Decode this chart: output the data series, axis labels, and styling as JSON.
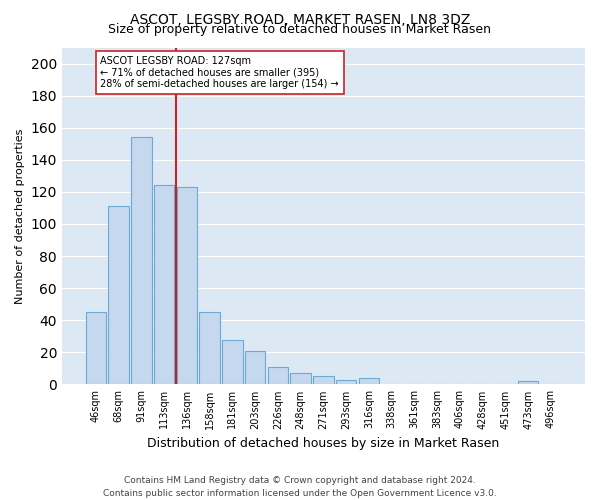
{
  "title": "ASCOT, LEGSBY ROAD, MARKET RASEN, LN8 3DZ",
  "subtitle": "Size of property relative to detached houses in Market Rasen",
  "xlabel": "Distribution of detached houses by size in Market Rasen",
  "ylabel": "Number of detached properties",
  "categories": [
    "46sqm",
    "68sqm",
    "91sqm",
    "113sqm",
    "136sqm",
    "158sqm",
    "181sqm",
    "203sqm",
    "226sqm",
    "248sqm",
    "271sqm",
    "293sqm",
    "316sqm",
    "338sqm",
    "361sqm",
    "383sqm",
    "406sqm",
    "428sqm",
    "451sqm",
    "473sqm",
    "496sqm"
  ],
  "values": [
    45,
    111,
    154,
    124,
    123,
    45,
    28,
    21,
    11,
    7,
    5,
    3,
    4,
    0,
    0,
    0,
    0,
    0,
    0,
    2,
    0
  ],
  "bar_color": "#c5d8ed",
  "bar_edge_color": "#6aaad4",
  "background_color": "#dde8f5",
  "vline_color": "#cc2222",
  "annotation_text": "ASCOT LEGSBY ROAD: 127sqm\n← 71% of detached houses are smaller (395)\n28% of semi-detached houses are larger (154) →",
  "annotation_box_color": "white",
  "annotation_box_edge_color": "#cc2222",
  "footer": "Contains HM Land Registry data © Crown copyright and database right 2024.\nContains public sector information licensed under the Open Government Licence v3.0.",
  "ylim": [
    0,
    210
  ],
  "yticks": [
    0,
    20,
    40,
    60,
    80,
    100,
    120,
    140,
    160,
    180,
    200
  ],
  "title_fontsize": 10,
  "subtitle_fontsize": 9,
  "xlabel_fontsize": 9,
  "ylabel_fontsize": 8,
  "tick_fontsize": 7,
  "annot_fontsize": 7,
  "footer_fontsize": 6.5
}
